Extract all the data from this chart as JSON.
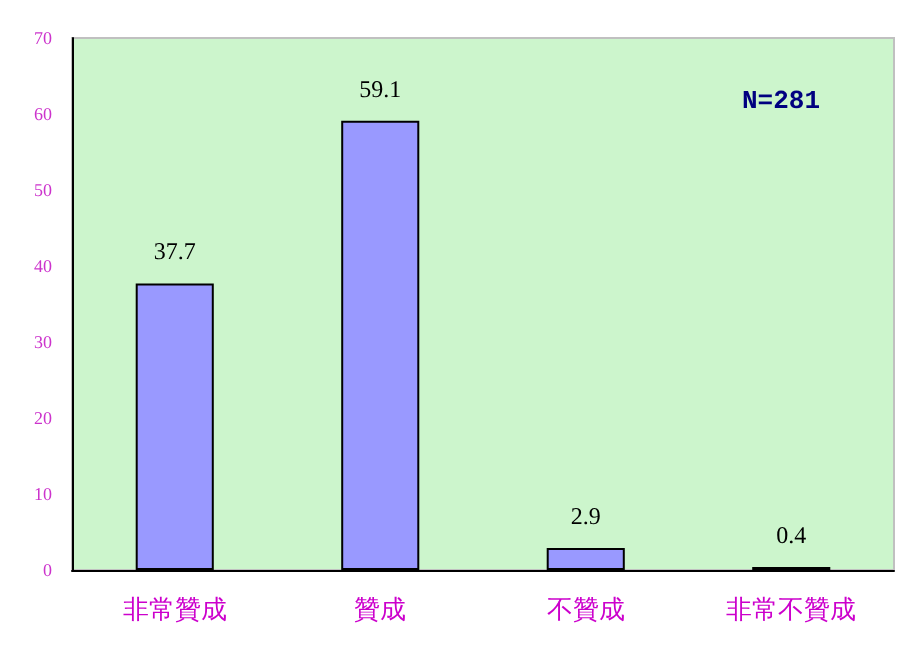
{
  "chart_data": {
    "type": "bar",
    "categories": [
      "非常贊成",
      "贊成",
      "不贊成",
      "非常不贊成"
    ],
    "values": [
      37.7,
      59.1,
      2.9,
      0.4
    ],
    "color": "#9999ff",
    "ylim": [
      0,
      70
    ],
    "yticks": [
      0,
      10,
      20,
      30,
      40,
      50,
      60,
      70
    ],
    "data_labels": true,
    "annotations": [
      "N=281"
    ]
  }
}
